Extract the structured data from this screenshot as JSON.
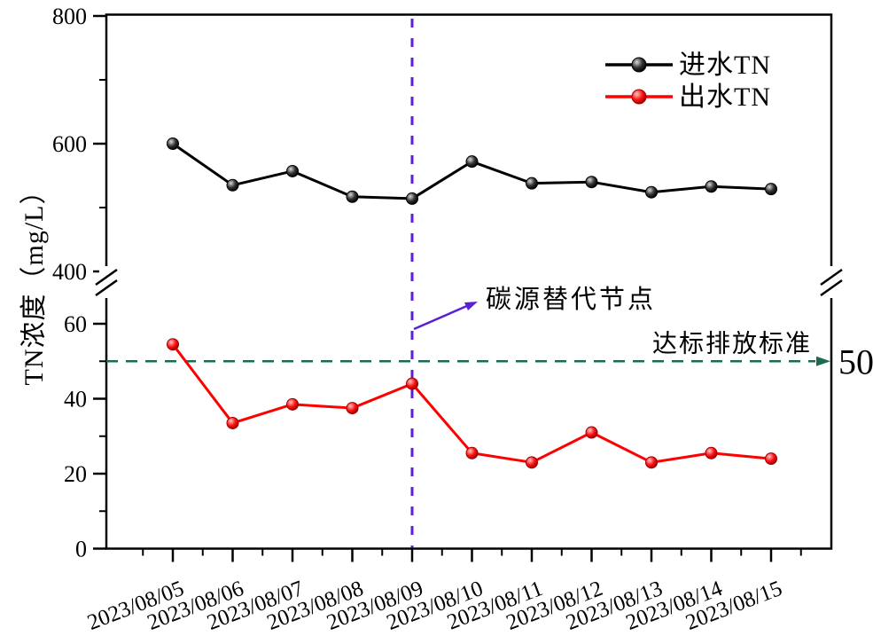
{
  "chart_data": {
    "type": "line",
    "title": "",
    "ylabel": "TN浓度（mg/L）",
    "categories": [
      "2023/08/05",
      "2023/08/06",
      "2023/08/07",
      "2023/08/08",
      "2023/08/09",
      "2023/08/10",
      "2023/08/11",
      "2023/08/12",
      "2023/08/13",
      "2023/08/14",
      "2023/08/15"
    ],
    "series": [
      {
        "name": "进水TN",
        "color": "#000000",
        "marker_colors": [
          "#d9d9d9",
          "#353535",
          "#000000"
        ],
        "values": [
          600,
          535,
          557,
          517,
          514,
          572,
          538,
          540,
          524,
          533,
          529
        ]
      },
      {
        "name": "出水TN",
        "color": "#ff0000",
        "marker_colors": [
          "#ffc8c8",
          "#ff1515",
          "#9e0000"
        ],
        "values": [
          54.5,
          33.5,
          38.5,
          37.5,
          44,
          25.5,
          23,
          31,
          23,
          25.5,
          24
        ]
      }
    ],
    "y_axis": {
      "broken": true,
      "top_segment": {
        "range": [
          400,
          800
        ],
        "major_ticks": [
          400,
          600,
          800
        ],
        "minor_ticks": [
          500,
          700
        ]
      },
      "bottom_segment": {
        "range": [
          0,
          66
        ],
        "major_ticks": [
          0,
          20,
          40,
          60
        ],
        "minor_ticks": [
          10,
          30,
          50
        ]
      }
    },
    "legend": {
      "position": "top-right",
      "entries": [
        "进水TN",
        "出水TN"
      ]
    },
    "annotations": {
      "vline": {
        "x": "2023/08/09",
        "color": "#5a1fd8",
        "label": "碳源替代节点",
        "label_color": "#5a1fd8"
      },
      "hline": {
        "y": 50,
        "color": "#1a6b52",
        "label": "达标排放标准",
        "label_color": "#c2611c",
        "right_label": "50"
      }
    },
    "grid": false
  }
}
